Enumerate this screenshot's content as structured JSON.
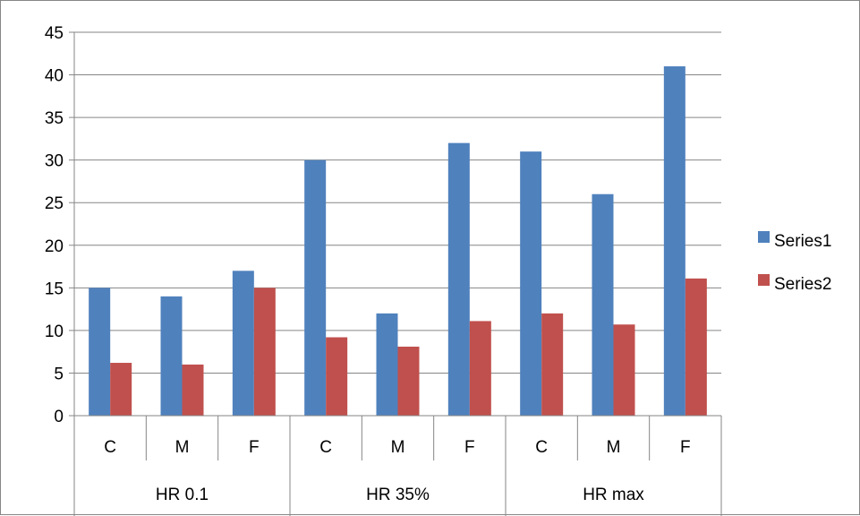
{
  "chart_data": {
    "type": "bar",
    "groups": [
      {
        "label": "HR 0.1",
        "categories": [
          "C",
          "M",
          "F"
        ]
      },
      {
        "label": "HR 35%",
        "categories": [
          "C",
          "M",
          "F"
        ]
      },
      {
        "label": "HR max",
        "categories": [
          "C",
          "M",
          "F"
        ]
      }
    ],
    "categories": [
      "C",
      "M",
      "F",
      "C",
      "M",
      "F",
      "C",
      "M",
      "F"
    ],
    "series": [
      {
        "name": "Series1",
        "color": "#4F81BD",
        "values": [
          15,
          14,
          17,
          30,
          12,
          32,
          31,
          26,
          41
        ]
      },
      {
        "name": "Series2",
        "color": "#C0504D",
        "values": [
          6.2,
          6,
          15,
          9.2,
          8.1,
          11.1,
          12,
          10.7,
          16.1
        ]
      }
    ],
    "ylim": [
      0,
      45
    ],
    "yticks": [
      0,
      5,
      10,
      15,
      20,
      25,
      30,
      35,
      40,
      45
    ],
    "grid": true,
    "legend_position": "right",
    "title": "",
    "xlabel": "",
    "ylabel": ""
  }
}
